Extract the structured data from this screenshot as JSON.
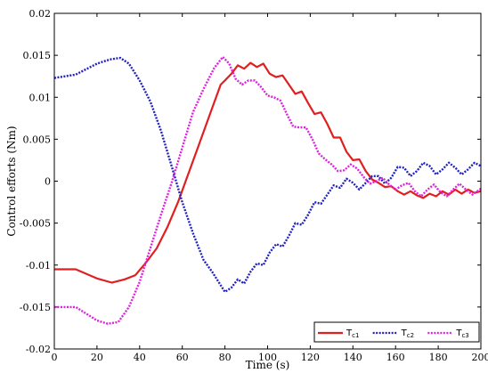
{
  "chart_data": {
    "type": "line",
    "xlabel": "Time (s)",
    "ylabel": "Control efforts (Nm)",
    "xlim": [
      0,
      200
    ],
    "ylim": [
      -0.02,
      0.02
    ],
    "xticks": [
      0,
      20,
      40,
      60,
      80,
      100,
      120,
      140,
      160,
      180,
      200
    ],
    "yticks": [
      -0.02,
      -0.015,
      -0.01,
      -0.005,
      0,
      0.005,
      0.01,
      0.015,
      0.02
    ],
    "ytick_labels": [
      "-0.02",
      "-0.015",
      "-0.01",
      "-0.005",
      "0",
      "0.005",
      "0.01",
      "0.015",
      "0.02"
    ],
    "grid": false,
    "legend_position": "bottom-right",
    "series": [
      {
        "name": "T",
        "subscript": "c1",
        "color": "#e02020",
        "style": "solid",
        "points": [
          [
            0,
            -0.0105
          ],
          [
            10,
            -0.0105
          ],
          [
            20,
            -0.0116
          ],
          [
            27,
            -0.0121
          ],
          [
            33,
            -0.0117
          ],
          [
            38,
            -0.0112
          ],
          [
            43,
            -0.0097
          ],
          [
            48,
            -0.008
          ],
          [
            53,
            -0.0055
          ],
          [
            58,
            -0.0025
          ],
          [
            63,
            0.001
          ],
          [
            68,
            0.0045
          ],
          [
            73,
            0.008
          ],
          [
            78,
            0.0115
          ],
          [
            80,
            0.012
          ],
          [
            83,
            0.0128
          ],
          [
            86,
            0.0138
          ],
          [
            89,
            0.0134
          ],
          [
            92,
            0.0141
          ],
          [
            95,
            0.0136
          ],
          [
            98,
            0.014
          ],
          [
            101,
            0.0128
          ],
          [
            104,
            0.0124
          ],
          [
            107,
            0.0126
          ],
          [
            110,
            0.0115
          ],
          [
            113,
            0.0104
          ],
          [
            116,
            0.0107
          ],
          [
            119,
            0.0093
          ],
          [
            122,
            0.008
          ],
          [
            125,
            0.0082
          ],
          [
            128,
            0.0068
          ],
          [
            131,
            0.0052
          ],
          [
            134,
            0.0052
          ],
          [
            137,
            0.0035
          ],
          [
            140,
            0.0025
          ],
          [
            143,
            0.0026
          ],
          [
            146,
            0.0012
          ],
          [
            149,
            0.0002
          ],
          [
            152,
            -0.0002
          ],
          [
            155,
            -0.0007
          ],
          [
            158,
            -0.0006
          ],
          [
            161,
            -0.0012
          ],
          [
            164,
            -0.0016
          ],
          [
            167,
            -0.0012
          ],
          [
            170,
            -0.0017
          ],
          [
            173,
            -0.002
          ],
          [
            176,
            -0.0015
          ],
          [
            179,
            -0.0018
          ],
          [
            182,
            -0.0012
          ],
          [
            185,
            -0.0016
          ],
          [
            188,
            -0.001
          ],
          [
            191,
            -0.0015
          ],
          [
            194,
            -0.001
          ],
          [
            197,
            -0.0014
          ],
          [
            200,
            -0.0012
          ]
        ]
      },
      {
        "name": "T",
        "subscript": "c2",
        "color": "#2020c0",
        "style": "dotted",
        "points": [
          [
            0,
            0.0123
          ],
          [
            10,
            0.0127
          ],
          [
            20,
            0.014
          ],
          [
            26,
            0.0145
          ],
          [
            31,
            0.0147
          ],
          [
            35,
            0.014
          ],
          [
            40,
            0.012
          ],
          [
            45,
            0.0095
          ],
          [
            50,
            0.006
          ],
          [
            55,
            0.0018
          ],
          [
            60,
            -0.0025
          ],
          [
            65,
            -0.0062
          ],
          [
            70,
            -0.0094
          ],
          [
            74,
            -0.0108
          ],
          [
            77,
            -0.012
          ],
          [
            80,
            -0.0132
          ],
          [
            83,
            -0.0127
          ],
          [
            86,
            -0.0117
          ],
          [
            89,
            -0.0122
          ],
          [
            92,
            -0.0108
          ],
          [
            95,
            -0.0098
          ],
          [
            98,
            -0.01
          ],
          [
            101,
            -0.0085
          ],
          [
            104,
            -0.0075
          ],
          [
            107,
            -0.0078
          ],
          [
            110,
            -0.0065
          ],
          [
            113,
            -0.005
          ],
          [
            116,
            -0.0052
          ],
          [
            119,
            -0.004
          ],
          [
            122,
            -0.0025
          ],
          [
            125,
            -0.0027
          ],
          [
            128,
            -0.0016
          ],
          [
            131,
            -0.0005
          ],
          [
            134,
            -0.0008
          ],
          [
            137,
            0.0003
          ],
          [
            140,
            -0.0002
          ],
          [
            143,
            -0.001
          ],
          [
            146,
            -0.0002
          ],
          [
            149,
            0.0006
          ],
          [
            152,
            0.0006
          ],
          [
            155,
            -0.0003
          ],
          [
            158,
            0.0004
          ],
          [
            161,
            0.0017
          ],
          [
            164,
            0.0016
          ],
          [
            167,
            0.0006
          ],
          [
            170,
            0.0012
          ],
          [
            173,
            0.0022
          ],
          [
            176,
            0.0018
          ],
          [
            179,
            0.0008
          ],
          [
            182,
            0.0014
          ],
          [
            185,
            0.0022
          ],
          [
            188,
            0.0016
          ],
          [
            191,
            0.0008
          ],
          [
            194,
            0.0014
          ],
          [
            197,
            0.0022
          ],
          [
            200,
            0.0018
          ]
        ]
      },
      {
        "name": "T",
        "subscript": "c3",
        "color": "#e020e0",
        "style": "dotted",
        "points": [
          [
            0,
            -0.015
          ],
          [
            10,
            -0.015
          ],
          [
            15,
            -0.0158
          ],
          [
            20,
            -0.0166
          ],
          [
            25,
            -0.017
          ],
          [
            30,
            -0.0168
          ],
          [
            35,
            -0.015
          ],
          [
            40,
            -0.012
          ],
          [
            45,
            -0.008
          ],
          [
            50,
            -0.004
          ],
          [
            55,
            -0.0002
          ],
          [
            60,
            0.004
          ],
          [
            65,
            0.0082
          ],
          [
            70,
            0.011
          ],
          [
            75,
            0.0135
          ],
          [
            79,
            0.0148
          ],
          [
            82,
            0.014
          ],
          [
            85,
            0.0122
          ],
          [
            88,
            0.0115
          ],
          [
            91,
            0.012
          ],
          [
            94,
            0.012
          ],
          [
            97,
            0.0112
          ],
          [
            100,
            0.0102
          ],
          [
            103,
            0.01
          ],
          [
            106,
            0.0096
          ],
          [
            109,
            0.008
          ],
          [
            112,
            0.0065
          ],
          [
            115,
            0.0064
          ],
          [
            118,
            0.0064
          ],
          [
            121,
            0.005
          ],
          [
            124,
            0.0033
          ],
          [
            127,
            0.0026
          ],
          [
            130,
            0.002
          ],
          [
            133,
            0.0012
          ],
          [
            136,
            0.0013
          ],
          [
            139,
            0.002
          ],
          [
            142,
            0.0015
          ],
          [
            145,
            0.0005
          ],
          [
            148,
            -0.0003
          ],
          [
            151,
            0.0
          ],
          [
            154,
            0.0004
          ],
          [
            157,
            -0.0004
          ],
          [
            160,
            -0.001
          ],
          [
            163,
            -0.0005
          ],
          [
            166,
            -0.0002
          ],
          [
            169,
            -0.0012
          ],
          [
            172,
            -0.0018
          ],
          [
            175,
            -0.001
          ],
          [
            178,
            -0.0004
          ],
          [
            181,
            -0.0013
          ],
          [
            184,
            -0.0018
          ],
          [
            187,
            -0.001
          ],
          [
            190,
            -0.0003
          ],
          [
            193,
            -0.001
          ],
          [
            196,
            -0.0016
          ],
          [
            200,
            -0.0009
          ]
        ]
      }
    ]
  }
}
